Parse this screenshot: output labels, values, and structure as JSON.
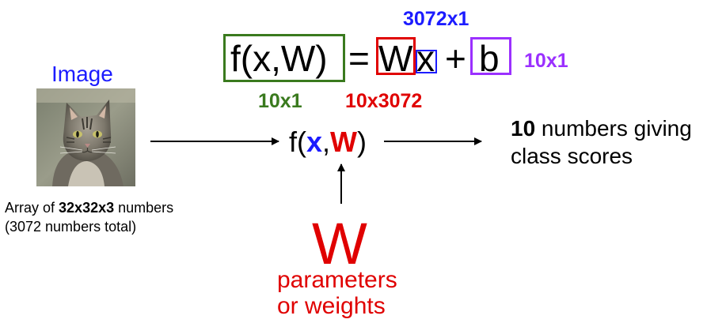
{
  "equation": {
    "f_label": "f(x,W)",
    "equals": "=",
    "w": "W",
    "x": "x",
    "plus": "+",
    "b": "b",
    "dim_x": "3072x1",
    "dim_b": "10x1",
    "dim_f": "10x1",
    "dim_w": "10x3072",
    "colors": {
      "f_box": "#3a7a1e",
      "w_box": "#e00000",
      "x_box": "#1c1cff",
      "b_box": "#9b30ff",
      "dim_x": "#1c1cff",
      "dim_b": "#9b30ff",
      "dim_f": "#3a7a1e",
      "dim_w": "#e00000"
    }
  },
  "image": {
    "label": "Image",
    "label_color": "#1c1cff",
    "desc_prefix": "Array of ",
    "desc_bold": "32x32x3",
    "desc_suffix": " numbers",
    "desc_line2": "(3072 numbers total)"
  },
  "function": {
    "open": "f(",
    "x": "x",
    "comma": ",",
    "w": "W",
    "close": ")"
  },
  "output": {
    "bold": "10",
    "line1_rest": " numbers giving",
    "line2": "class scores"
  },
  "params": {
    "symbol": "W",
    "line1": "parameters",
    "line2": "or weights"
  }
}
